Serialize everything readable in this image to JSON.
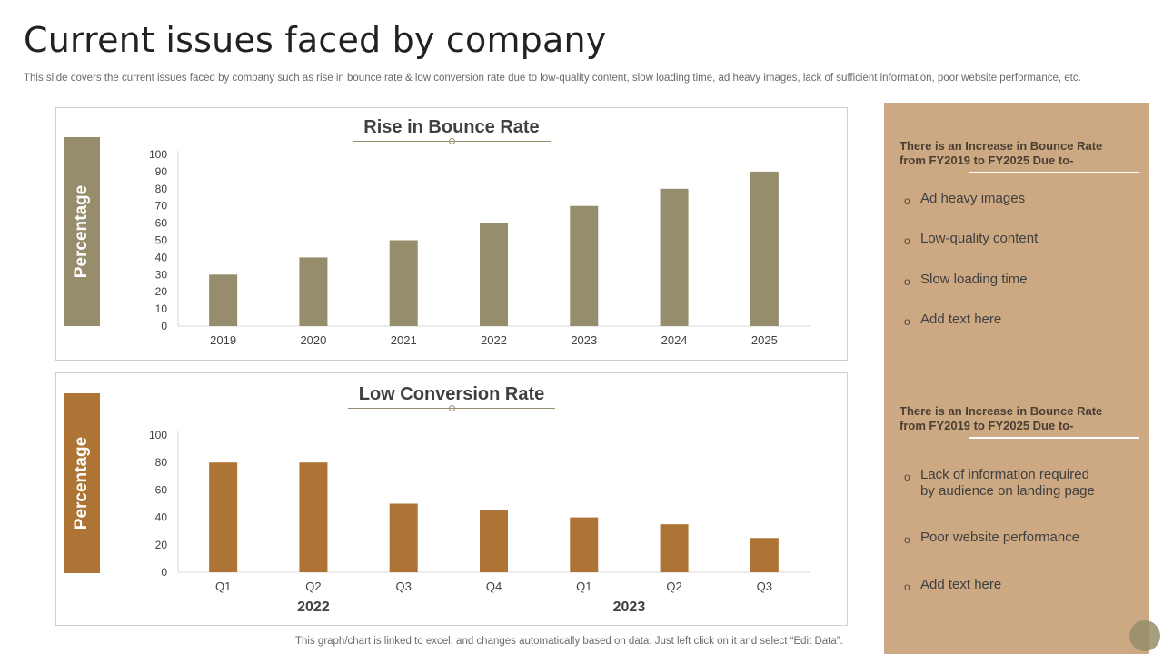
{
  "page": {
    "title": "Current issues faced by company",
    "subtitle": "This slide covers the current issues faced by company such as rise in bounce rate & low conversion rate due to low-quality content, slow loading time, ad heavy images, lack of sufficient information, poor website performance, etc.",
    "footnote": "This graph/chart is linked to excel,  and changes automatically based on data. Just left click on it and select “Edit Data”."
  },
  "colors": {
    "bounce_bar": "#958d6b",
    "conversion_bar": "#ad7436",
    "panel_bg": "#cca883"
  },
  "chart_data": [
    {
      "type": "bar",
      "title": "Rise in Bounce Rate",
      "ylabel": "Percentage",
      "categories": [
        "2019",
        "2020",
        "2021",
        "2022",
        "2023",
        "2024",
        "2025"
      ],
      "values": [
        30,
        40,
        50,
        60,
        70,
        80,
        90
      ],
      "yticks": [
        "0",
        "10",
        "20",
        "30",
        "40",
        "50",
        "60",
        "70",
        "80",
        "90",
        "100"
      ],
      "ylim": [
        0,
        100
      ],
      "grid": false
    },
    {
      "type": "bar",
      "title": "Low Conversion Rate",
      "ylabel": "Percentage",
      "categories": [
        "Q1",
        "Q2",
        "Q3",
        "Q4",
        "Q1",
        "Q2",
        "Q3"
      ],
      "groups": [
        {
          "label": "2022",
          "span": [
            0,
            3
          ]
        },
        {
          "label": "2023",
          "span": [
            4,
            6
          ]
        }
      ],
      "values": [
        80,
        80,
        50,
        45,
        40,
        35,
        25
      ],
      "yticks": [
        "0",
        "20",
        "40",
        "60",
        "80",
        "100"
      ],
      "ylim": [
        0,
        100
      ],
      "grid": false
    }
  ],
  "side_panel": {
    "sections": [
      {
        "heading": "There is an Increase in Bounce Rate from FY2019  to FY2025  Due to-",
        "items": [
          "Ad heavy images",
          "Low-quality content",
          "Slow loading time",
          "Add text here"
        ]
      },
      {
        "heading": "There is an Increase in Bounce Rate from FY2019  to FY2025  Due to-",
        "items": [
          "Lack of information required by audience on landing page",
          "Poor website performance",
          "Add text here"
        ]
      }
    ]
  }
}
